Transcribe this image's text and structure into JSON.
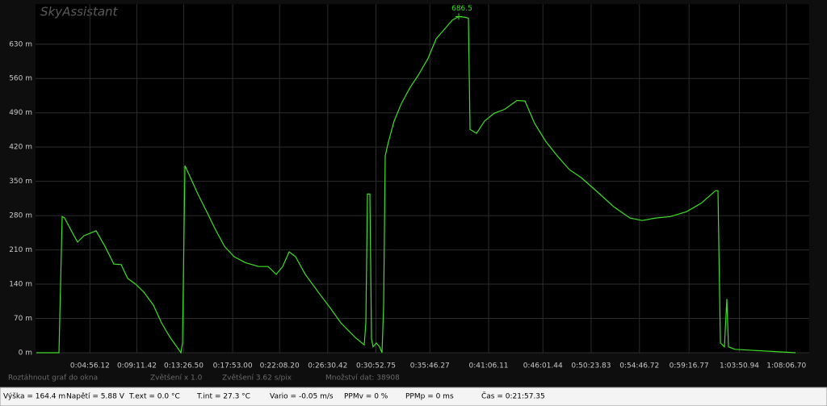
{
  "app": {
    "watermark": "SkyAssistant",
    "hints": [
      "Roztáhnout graf do okna",
      "Zvětšení x 1.0",
      "Zvětšení  3.62 s/pix",
      "Množství dat: 38908"
    ],
    "status_bar": [
      "Výška = 164.4 m",
      "Napětí = 5.88 V",
      "T.ext = 0.0 °C",
      "T.int = 27.3 °C",
      "Vario = -0.05 m/s",
      "PPMv = 0 %",
      "PPMp = 0 ms",
      "Čas = 0:21:57.35"
    ]
  },
  "chart_data": {
    "type": "line",
    "color": "#3ee024",
    "grid": true,
    "xlim": [
      0,
      4211
    ],
    "ylim": [
      0,
      712
    ],
    "xticks": [
      {
        "value": 296.12,
        "label": "0:04:56.12"
      },
      {
        "value": 551.42,
        "label": "0:09:11.42"
      },
      {
        "value": 806.5,
        "label": "0:13:26.50"
      },
      {
        "value": 1073,
        "label": "0:17:53.00"
      },
      {
        "value": 1328.2,
        "label": "0:22:08.20"
      },
      {
        "value": 1590.42,
        "label": "0:26:30.42"
      },
      {
        "value": 1852.75,
        "label": "0:30:52.75"
      },
      {
        "value": 2146.27,
        "label": "0:35:46.27"
      },
      {
        "value": 2466.11,
        "label": "0:41:06.11"
      },
      {
        "value": 2761.44,
        "label": "0:46:01.44"
      },
      {
        "value": 3023.83,
        "label": "0:50:23.83"
      },
      {
        "value": 3286.72,
        "label": "0:54:46.72"
      },
      {
        "value": 3556.77,
        "label": "0:59:16.77"
      },
      {
        "value": 3830.94,
        "label": "1:03:50.94"
      },
      {
        "value": 4086.7,
        "label": "1:08:06.70"
      }
    ],
    "yticks": [
      {
        "value": 0,
        "label": "0 m"
      },
      {
        "value": 70,
        "label": "70 m"
      },
      {
        "value": 140,
        "label": "140 m"
      },
      {
        "value": 210,
        "label": "210 m"
      },
      {
        "value": 280,
        "label": "280 m"
      },
      {
        "value": 350,
        "label": "350 m"
      },
      {
        "value": 420,
        "label": "420 m"
      },
      {
        "value": 490,
        "label": "490 m"
      },
      {
        "value": 560,
        "label": "560 m"
      },
      {
        "value": 630,
        "label": "630 m"
      }
    ],
    "x": [
      4.4,
      127.5,
      145.1,
      158.2,
      193.4,
      228.6,
      263.7,
      329.7,
      378.0,
      426.4,
      465.9,
      501.1,
      545.1,
      589.0,
      641.8,
      685.7,
      729.7,
      791.2,
      800.0,
      813.2,
      843.9,
      883.5,
      931.9,
      975.8,
      1028.6,
      1081.3,
      1142.9,
      1213.2,
      1265.9,
      1309.9,
      1345.1,
      1380.2,
      1415.4,
      1468.1,
      1538.5,
      1608.8,
      1661.5,
      1740.7,
      1789.0,
      1797.8,
      1806.6,
      1819.8,
      1828.6,
      1837.4,
      1855.0,
      1872.5,
      1885.7,
      1894.5,
      1903.3,
      1920.9,
      1951.6,
      1991.2,
      2039.6,
      2083.5,
      2136.3,
      2180.2,
      2224.2,
      2268.1,
      2303.3,
      2338.5,
      2356.0,
      2364.8,
      2400.0,
      2444.0,
      2496.7,
      2553.8,
      2619.8,
      2663.7,
      2716.5,
      2778.0,
      2839.6,
      2905.5,
      2971.4,
      3059.3,
      3147.3,
      3235.2,
      3301.1,
      3375.8,
      3454.9,
      3542.9,
      3622.0,
      3701.1,
      3714.3,
      3727.5,
      3749.5,
      3762.6,
      3771.4,
      3806.6,
      4136.3
    ],
    "values": [
      0,
      0,
      278,
      275,
      250,
      226,
      239,
      249,
      217,
      181,
      180,
      152,
      140,
      124,
      97,
      61,
      33,
      0,
      20,
      382,
      357,
      324,
      288,
      254,
      217,
      196,
      184,
      176,
      176,
      160,
      176,
      206,
      196,
      160,
      124,
      89,
      61,
      31,
      16,
      61,
      324,
      324,
      28,
      12,
      20,
      12,
      0,
      94,
      402,
      431,
      473,
      509,
      542,
      567,
      601,
      641,
      660,
      679,
      686.5,
      685,
      683,
      456,
      448,
      473,
      489,
      497,
      515,
      514,
      468,
      431,
      402,
      374,
      357,
      328,
      298,
      275,
      270,
      275,
      278,
      288,
      305,
      331,
      331,
      20,
      12,
      110,
      12,
      7,
      0
    ]
  }
}
